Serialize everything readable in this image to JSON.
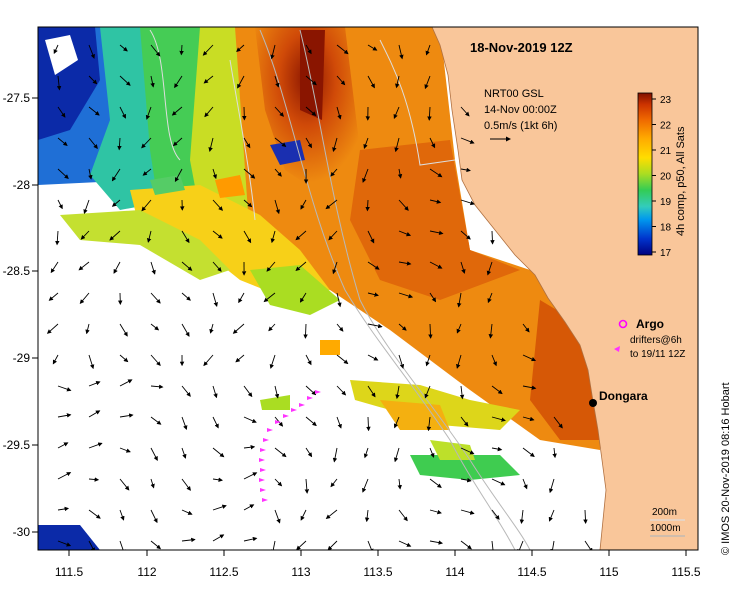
{
  "map": {
    "title": "18-Nov-2019 12Z",
    "current_note": [
      "NRT00 GSL",
      "14-Nov 00:00Z",
      "0.5m/s (1kt 6h)"
    ],
    "credit": "© IMOS 20-Nov-2019 08:16 Hobart",
    "place_label": "Dongara",
    "argo_label": "Argo",
    "drifter_label": [
      "drifters@6h",
      "to 19/11 12Z"
    ],
    "depth_labels": [
      "200m",
      "1000m"
    ],
    "x_ticks": [
      "111.5",
      "112",
      "112.5",
      "113",
      "113.5",
      "114",
      "114.5",
      "115",
      "115.5"
    ],
    "y_ticks": [
      "-27.5",
      "-28",
      "-28.5",
      "-29",
      "-29.5",
      "-30"
    ]
  },
  "colorbar": {
    "label": "4h comp, p50, All Sats",
    "ticks": [
      "23",
      "22",
      "21",
      "20",
      "19",
      "18",
      "17"
    ],
    "colors": [
      "#00007f",
      "#0033cc",
      "#0099ee",
      "#33ccbb",
      "#33cc55",
      "#aadd22",
      "#ffdd00",
      "#ffaa00",
      "#ee6600",
      "#cc3300",
      "#7f1100"
    ]
  },
  "colors": {
    "land": "#f9c69a",
    "argo": "#ff00ff",
    "drifter": "#ff33ff"
  }
}
